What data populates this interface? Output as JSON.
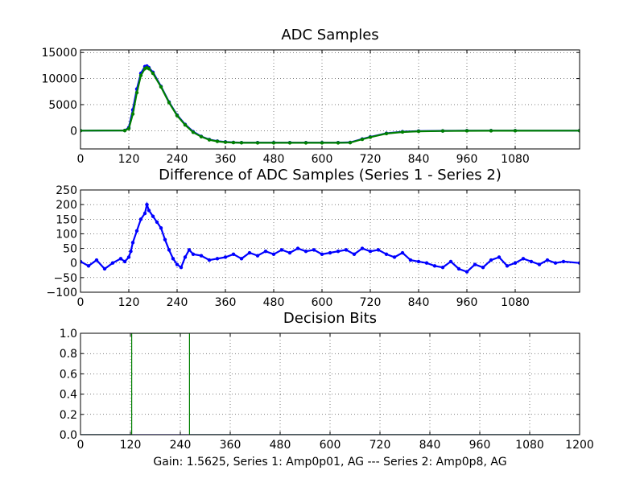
{
  "figure": {
    "caption": "Gain: 1.5625, Series 1: Amp0p01, AG --- Series 2: Amp0p8, AG"
  },
  "chart_data": [
    {
      "type": "line",
      "title": "ADC Samples",
      "xlim": [
        0,
        1240
      ],
      "ylim": [
        -3500,
        15500
      ],
      "xticks": [
        "0",
        "120",
        "240",
        "360",
        "480",
        "600",
        "720",
        "840",
        "960",
        "1080"
      ],
      "xtick_values": [
        0,
        120,
        240,
        360,
        480,
        600,
        720,
        840,
        960,
        1080
      ],
      "yticks": [
        "0",
        "5000",
        "10000",
        "15000"
      ],
      "ytick_values": [
        0,
        5000,
        10000,
        15000
      ],
      "grid": true,
      "series": [
        {
          "color": "#0000ff",
          "marker": "dot",
          "x": [
            0,
            110,
            120,
            130,
            140,
            150,
            160,
            165,
            170,
            180,
            200,
            220,
            240,
            260,
            280,
            300,
            320,
            340,
            360,
            380,
            400,
            440,
            480,
            520,
            560,
            600,
            640,
            670,
            700,
            720,
            760,
            800,
            840,
            900,
            960,
            1020,
            1080,
            1240
          ],
          "y": [
            0,
            50,
            600,
            4000,
            8000,
            11000,
            12300,
            12400,
            12100,
            11200,
            8500,
            5500,
            3000,
            1200,
            -200,
            -1100,
            -1700,
            -2000,
            -2150,
            -2250,
            -2300,
            -2300,
            -2300,
            -2300,
            -2300,
            -2300,
            -2300,
            -2250,
            -1600,
            -1200,
            -500,
            -200,
            -80,
            -30,
            0,
            0,
            0,
            0
          ]
        },
        {
          "color": "#008000",
          "marker": "dot",
          "x": [
            0,
            110,
            120,
            130,
            140,
            150,
            160,
            165,
            170,
            180,
            200,
            220,
            240,
            260,
            280,
            300,
            320,
            340,
            360,
            380,
            400,
            440,
            480,
            520,
            560,
            600,
            640,
            670,
            700,
            720,
            760,
            800,
            840,
            900,
            960,
            1020,
            1080,
            1240
          ],
          "y": [
            0,
            30,
            400,
            3200,
            7300,
            10600,
            11900,
            12100,
            11900,
            11000,
            8400,
            5400,
            2900,
            1100,
            -300,
            -1150,
            -1750,
            -2050,
            -2200,
            -2280,
            -2320,
            -2330,
            -2330,
            -2330,
            -2330,
            -2330,
            -2330,
            -2290,
            -1650,
            -1250,
            -550,
            -250,
            -110,
            -50,
            -20,
            -10,
            -5,
            0
          ]
        }
      ]
    },
    {
      "type": "line",
      "title": "Difference of ADC Samples (Series 1 - Series 2)",
      "xlim": [
        0,
        1240
      ],
      "ylim": [
        -100,
        250
      ],
      "xticks": [
        "0",
        "120",
        "240",
        "360",
        "480",
        "600",
        "720",
        "840",
        "960",
        "1080"
      ],
      "xtick_values": [
        0,
        120,
        240,
        360,
        480,
        600,
        720,
        840,
        960,
        1080
      ],
      "yticks": [
        "−100",
        "−50",
        "0",
        "50",
        "100",
        "150",
        "200",
        "250"
      ],
      "ytick_values": [
        -100,
        -50,
        0,
        50,
        100,
        150,
        200,
        250
      ],
      "grid": true,
      "series": [
        {
          "color": "#0000ff",
          "marker": "dot",
          "x": [
            0,
            20,
            40,
            60,
            80,
            100,
            110,
            120,
            125,
            130,
            140,
            150,
            160,
            165,
            170,
            180,
            190,
            200,
            210,
            220,
            230,
            240,
            250,
            260,
            270,
            280,
            300,
            320,
            340,
            360,
            380,
            400,
            420,
            440,
            460,
            480,
            500,
            520,
            540,
            560,
            580,
            600,
            620,
            640,
            660,
            680,
            700,
            720,
            740,
            760,
            780,
            800,
            820,
            840,
            860,
            880,
            900,
            920,
            940,
            960,
            980,
            1000,
            1020,
            1040,
            1060,
            1080,
            1100,
            1120,
            1140,
            1160,
            1180,
            1200,
            1240
          ],
          "y": [
            5,
            -10,
            10,
            -20,
            0,
            15,
            5,
            20,
            40,
            70,
            110,
            150,
            170,
            200,
            180,
            160,
            140,
            120,
            80,
            45,
            15,
            -5,
            -15,
            20,
            45,
            30,
            25,
            10,
            15,
            20,
            30,
            15,
            35,
            25,
            40,
            30,
            45,
            35,
            50,
            40,
            45,
            30,
            35,
            40,
            45,
            30,
            50,
            40,
            45,
            30,
            20,
            35,
            10,
            5,
            0,
            -10,
            -15,
            5,
            -20,
            -30,
            -5,
            -15,
            10,
            20,
            -10,
            0,
            15,
            5,
            -5,
            10,
            0,
            5,
            0
          ]
        }
      ]
    },
    {
      "type": "line",
      "title": "Decision Bits",
      "xlim": [
        0,
        1200
      ],
      "ylim": [
        0.0,
        1.0
      ],
      "xticks": [
        "0",
        "120",
        "240",
        "360",
        "480",
        "600",
        "720",
        "840",
        "960",
        "1080",
        "1200"
      ],
      "xtick_values": [
        0,
        120,
        240,
        360,
        480,
        600,
        720,
        840,
        960,
        1080,
        1200
      ],
      "yticks": [
        "0.0",
        "0.2",
        "0.4",
        "0.6",
        "0.8",
        "1.0"
      ],
      "ytick_values": [
        0.0,
        0.2,
        0.4,
        0.6,
        0.8,
        1.0
      ],
      "grid": true,
      "series": [
        {
          "color": "#0000ff",
          "marker": "none",
          "x": [
            0,
            1200
          ],
          "y": [
            0,
            0
          ]
        },
        {
          "color": "#008000",
          "marker": "none",
          "x": [
            0,
            123,
            123,
            262,
            262,
            1200
          ],
          "y": [
            0,
            0,
            1,
            1,
            0,
            0
          ]
        }
      ]
    }
  ]
}
